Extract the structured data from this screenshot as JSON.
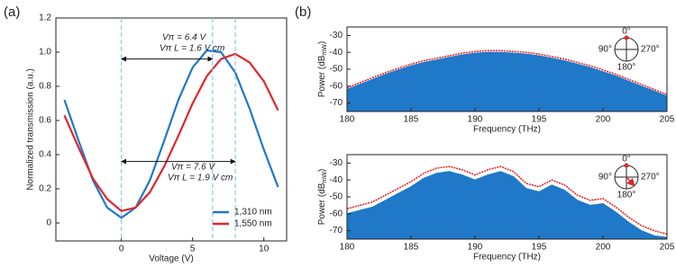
{
  "chart_data": [
    {
      "type": "line",
      "label": "(a)",
      "xlabel": "Voltage (V)",
      "ylabel": "Normalized transmission (a.u.)",
      "x": [
        -4,
        -3,
        -2,
        -1,
        0,
        1,
        2,
        3,
        4,
        5,
        6,
        7,
        8,
        9,
        10,
        11
      ],
      "series": [
        {
          "name": "1,310 nm",
          "color": "#1f78c8",
          "values": [
            0.72,
            0.48,
            0.25,
            0.09,
            0.03,
            0.09,
            0.25,
            0.48,
            0.72,
            0.91,
            1.01,
            1.0,
            0.88,
            0.67,
            0.43,
            0.21
          ]
        },
        {
          "name": "1,550 nm",
          "color": "#e0262b",
          "values": [
            0.63,
            0.44,
            0.26,
            0.14,
            0.07,
            0.09,
            0.18,
            0.33,
            0.51,
            0.7,
            0.86,
            0.96,
            0.99,
            0.94,
            0.83,
            0.66
          ]
        }
      ],
      "xlim": [
        -4.6,
        11.6
      ],
      "xticks": [
        0,
        5,
        10
      ],
      "ylim": [
        -0.105,
        1.2
      ],
      "yticks": [
        0,
        0.2,
        0.4,
        0.6,
        0.8,
        {
          "value": 1,
          "label": "1.0"
        },
        1.2
      ],
      "vlines": [
        0,
        6.4,
        8.0
      ],
      "vline_color": "#8cc8ea",
      "annotations": [
        "Vπ = 6.4 V",
        "Vπ L = 1.6 V cm",
        "Vπ = 7.6 V",
        "Vπ L = 1.9 V cm"
      ],
      "legend": "lower right"
    },
    {
      "type": "area",
      "label": "(b)",
      "xlabel": "Frequency (THz)",
      "ylabel": [
        "Power (dB",
        "mW",
        ")"
      ],
      "x": [
        180,
        181,
        182,
        183,
        184,
        185,
        186,
        187,
        188,
        189,
        190,
        191,
        192,
        193,
        194,
        195,
        196,
        197,
        198,
        199,
        200,
        201,
        202,
        203,
        204,
        205
      ],
      "series": [
        {
          "color": "#1f78c8",
          "values": [
            -62,
            -59,
            -56,
            -53,
            -50.5,
            -48,
            -46,
            -44.5,
            -43,
            -41.5,
            -40.5,
            -40,
            -40,
            -40.5,
            -41,
            -42,
            -43.5,
            -45,
            -47,
            -49,
            -51.5,
            -54,
            -57,
            -60,
            -63,
            -66
          ]
        },
        {
          "color": "#e0262b",
          "values": [
            -61,
            -58,
            -55,
            -52,
            -49.5,
            -47,
            -45,
            -43.5,
            -42,
            -40.5,
            -39.5,
            -39,
            -39,
            -39.5,
            -40,
            -41,
            -42.5,
            -44,
            -46,
            -48,
            -50.5,
            -53,
            -56,
            -59,
            -62,
            -65
          ]
        }
      ],
      "xlim": [
        180,
        205
      ],
      "xticks": [
        180,
        185,
        190,
        195,
        200,
        205
      ],
      "ylim": [
        -75,
        -25
      ],
      "yticks": [
        -30,
        -40,
        -50,
        -60,
        -70
      ],
      "polar_labels": [
        "0°",
        "90°",
        "270°",
        "180°"
      ]
    },
    {
      "type": "area",
      "xlabel": "Frequency (THz)",
      "ylabel": [
        "Power (dB",
        "mW",
        ")"
      ],
      "x": [
        180,
        181,
        182,
        183,
        184,
        185,
        186,
        187,
        188,
        189,
        190,
        191,
        192,
        193,
        194,
        195,
        196,
        197,
        198,
        199,
        200,
        201,
        202,
        203,
        204,
        205
      ],
      "series": [
        {
          "color": "#1f78c8",
          "values": [
            -60,
            -58,
            -56,
            -52,
            -48,
            -44,
            -39,
            -36,
            -35,
            -37,
            -40,
            -37,
            -35,
            -38,
            -45,
            -47,
            -43,
            -46,
            -52,
            -55,
            -54,
            -59,
            -65,
            -70,
            -73,
            -74
          ]
        },
        {
          "color": "#e0262b",
          "values": [
            -57,
            -55,
            -53,
            -49,
            -45,
            -41,
            -36,
            -33,
            -32,
            -34,
            -37,
            -34,
            -32,
            -35,
            -42,
            -44,
            -40,
            -43,
            -49,
            -52,
            -51,
            -56,
            -62,
            -67,
            -70,
            -72
          ]
        }
      ],
      "xlim": [
        180,
        205
      ],
      "xticks": [
        180,
        185,
        190,
        195,
        200,
        205
      ],
      "ylim": [
        -75,
        -25
      ],
      "yticks": [
        -30,
        -40,
        -50,
        -60,
        -70
      ],
      "polar_labels": [
        "0°",
        "90°",
        "270°",
        "180°"
      ]
    }
  ]
}
